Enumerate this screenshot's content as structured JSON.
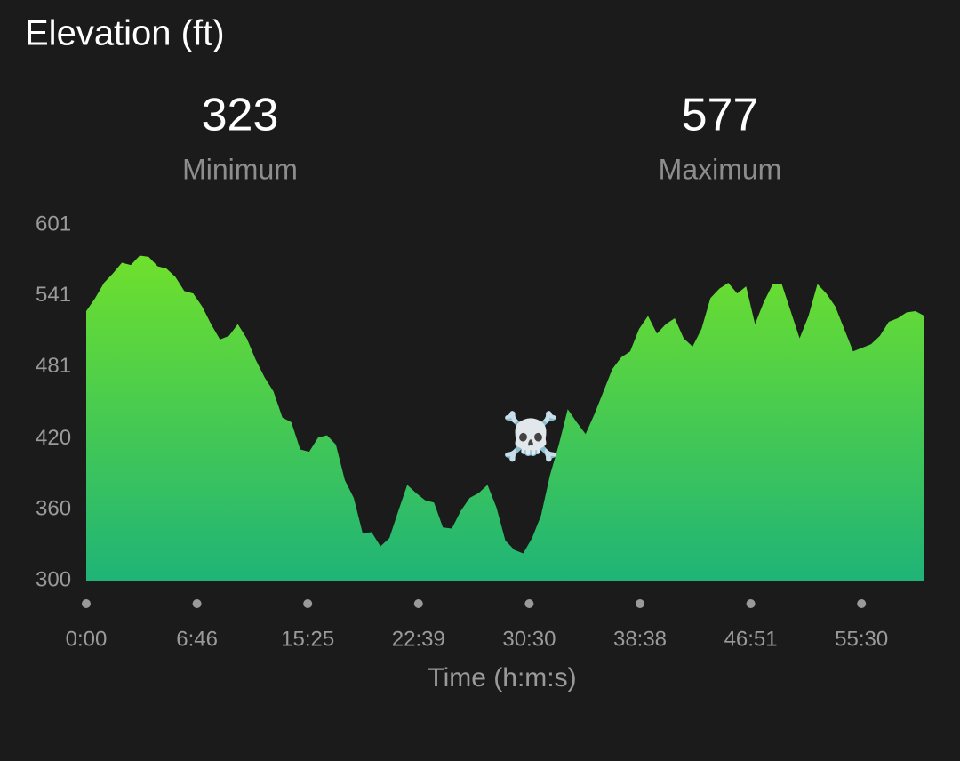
{
  "chart_data": {
    "type": "area",
    "title": "Elevation (ft)",
    "stats": [
      {
        "value": 323,
        "label": "Minimum"
      },
      {
        "value": 577,
        "label": "Maximum"
      }
    ],
    "x_tick_labels": [
      "0:00",
      "6:46",
      "15:25",
      "22:39",
      "30:30",
      "38:38",
      "46:51",
      "55:30"
    ],
    "xlabel": "Time (h:m:s)",
    "annotation": "☠️",
    "values": [
      528,
      539,
      552,
      560,
      569,
      567,
      575,
      574,
      566,
      564,
      557,
      545,
      543,
      532,
      517,
      504,
      507,
      517,
      505,
      487,
      472,
      460,
      438,
      434,
      411,
      409,
      421,
      423,
      415,
      385,
      370,
      340,
      341,
      329,
      336,
      359,
      381,
      374,
      368,
      366,
      345,
      344,
      359,
      370,
      374,
      381,
      362,
      334,
      326,
      323,
      336,
      355,
      389,
      415,
      445,
      434,
      424,
      441,
      460,
      479,
      489,
      494,
      513,
      524,
      509,
      517,
      522,
      505,
      498,
      513,
      539,
      547,
      552,
      543,
      549,
      517,
      536,
      551,
      551,
      528,
      505,
      524,
      551,
      543,
      532,
      513,
      494,
      497,
      500,
      507,
      519,
      522,
      527,
      528,
      524
    ],
    "color_top": "#6fe02c",
    "color_bottom": "#1fb477",
    "ylim": [
      300,
      601
    ],
    "yticks": [
      300,
      360,
      420,
      481,
      541,
      601
    ]
  }
}
